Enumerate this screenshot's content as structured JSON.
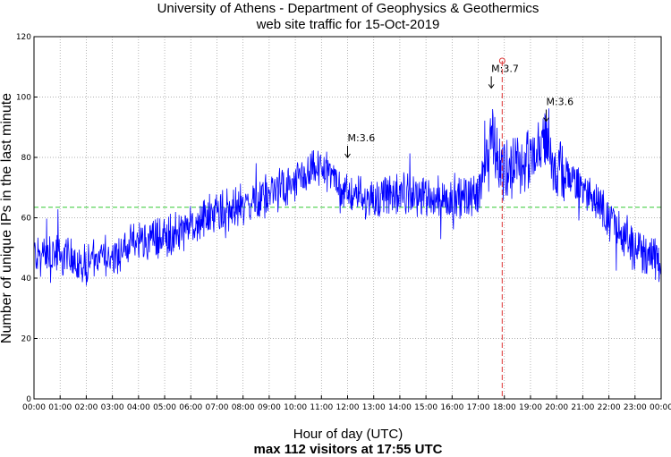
{
  "chart_data": {
    "type": "line",
    "title": "University of Athens - Department of Geophysics & Geothermics",
    "subtitle": "web site traffic for 15-Oct-2019",
    "xlabel": "Hour of day (UTC)",
    "xnote": "max 112 visitors at 17:55 UTC",
    "ylabel": "Number of unique IPs in the last minute",
    "ylim": [
      0,
      120
    ],
    "xlim": [
      0,
      24
    ],
    "yticks": [
      0,
      20,
      40,
      60,
      80,
      100,
      120
    ],
    "xticks": [
      "00:00",
      "01:00",
      "02:00",
      "03:00",
      "04:00",
      "05:00",
      "06:00",
      "07:00",
      "08:00",
      "09:00",
      "10:00",
      "11:00",
      "12:00",
      "13:00",
      "14:00",
      "15:00",
      "16:00",
      "17:00",
      "18:00",
      "19:00",
      "20:00",
      "21:00",
      "22:00",
      "23:00",
      "00:00"
    ],
    "grid": true,
    "average_line": 63.5,
    "max_marker": {
      "hour": 17.917,
      "value": 112
    },
    "series_hourly_approx": [
      {
        "hour": 0,
        "value": 48
      },
      {
        "hour": 1,
        "value": 47
      },
      {
        "hour": 2,
        "value": 45
      },
      {
        "hour": 3,
        "value": 48
      },
      {
        "hour": 4,
        "value": 52
      },
      {
        "hour": 5,
        "value": 54
      },
      {
        "hour": 6,
        "value": 57
      },
      {
        "hour": 7,
        "value": 62
      },
      {
        "hour": 8,
        "value": 64
      },
      {
        "hour": 9,
        "value": 68
      },
      {
        "hour": 10,
        "value": 71
      },
      {
        "hour": 11,
        "value": 77
      },
      {
        "hour": 12,
        "value": 68
      },
      {
        "hour": 13,
        "value": 66
      },
      {
        "hour": 14,
        "value": 68
      },
      {
        "hour": 15,
        "value": 67
      },
      {
        "hour": 16,
        "value": 66
      },
      {
        "hour": 17,
        "value": 68
      },
      {
        "hour": 17.5,
        "value": 86
      },
      {
        "hour": 18,
        "value": 76
      },
      {
        "hour": 19,
        "value": 78
      },
      {
        "hour": 19.6,
        "value": 86
      },
      {
        "hour": 20,
        "value": 76
      },
      {
        "hour": 21,
        "value": 70
      },
      {
        "hour": 22,
        "value": 60
      },
      {
        "hour": 23,
        "value": 50
      },
      {
        "hour": 24,
        "value": 45
      }
    ],
    "annotations": [
      {
        "text": "M:3.6",
        "hour": 12.0,
        "value": 80
      },
      {
        "text": "M:3.7",
        "hour": 17.5,
        "value": 103
      },
      {
        "text": "M:3.6",
        "hour": 19.6,
        "value": 92
      }
    ]
  },
  "colors": {
    "series": "#0000ff",
    "average": "#33cc33",
    "max_line": "#dd3333",
    "grid": "#999999"
  }
}
